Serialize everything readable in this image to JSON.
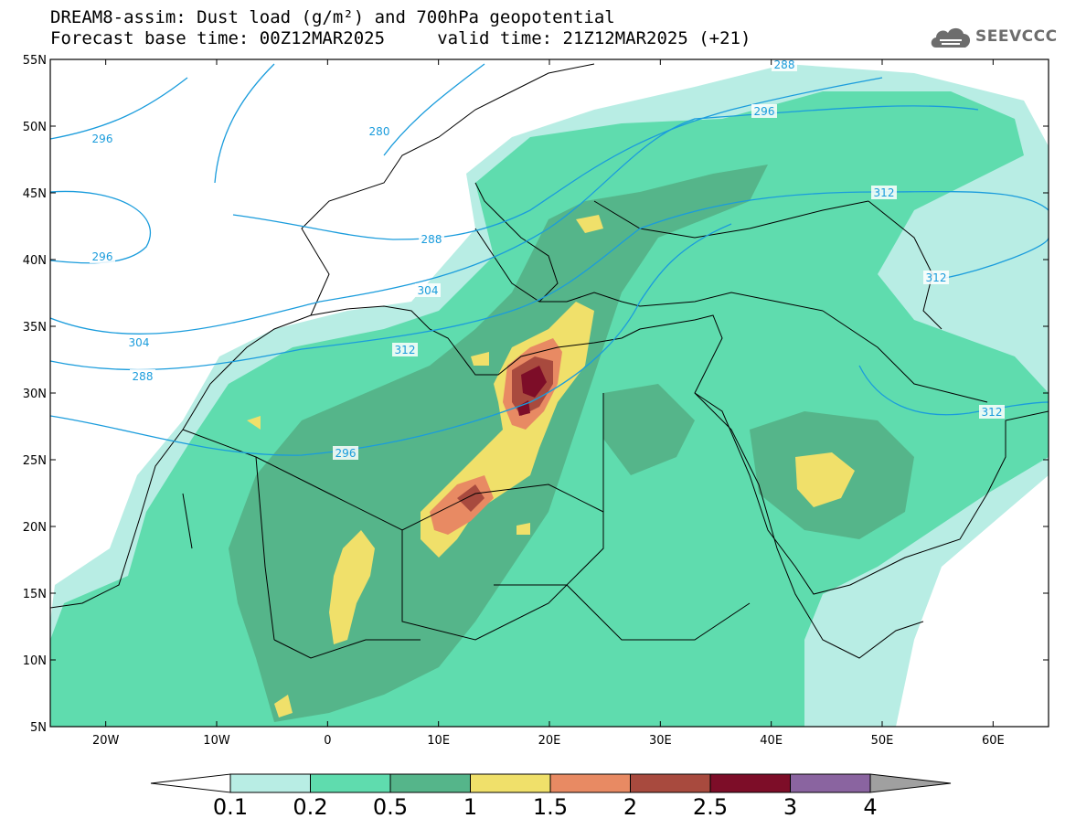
{
  "title": {
    "line1": "DREAM8-assim: Dust load (g/m²) and 700hPa geopotential",
    "line2": "Forecast base time: 00Z12MAR2025     valid time: 21Z12MAR2025 (+21)"
  },
  "logo": {
    "text": "SEEVCCC",
    "icon": "cloud-icon"
  },
  "axes": {
    "lon_range": [
      -25,
      65
    ],
    "lat_range": [
      5,
      55
    ],
    "x_ticks": [
      "20W",
      "10W",
      "0",
      "10E",
      "20E",
      "30E",
      "40E",
      "50E",
      "60E"
    ],
    "y_ticks": [
      "55N",
      "50N",
      "45N",
      "40N",
      "35N",
      "30N",
      "25N",
      "20N",
      "15N",
      "10N",
      "5N"
    ]
  },
  "contour_labels": [
    "296",
    "288",
    "280",
    "288",
    "296",
    "296",
    "304",
    "304",
    "312",
    "288",
    "296",
    "312",
    "312",
    "312"
  ],
  "colorbar": {
    "labels": [
      "0.1",
      "0.2",
      "0.5",
      "1",
      "1.5",
      "2",
      "2.5",
      "3",
      "4"
    ],
    "colors": [
      "#ffffff",
      "#b8ede4",
      "#5fdcae",
      "#55b58a",
      "#f0e06a",
      "#e88a63",
      "#a84a3e",
      "#7d0d28",
      "#8a64a0",
      "#a0a0a0"
    ]
  },
  "colors": {
    "contour": "#1a9cdc",
    "coast": "#000000"
  }
}
